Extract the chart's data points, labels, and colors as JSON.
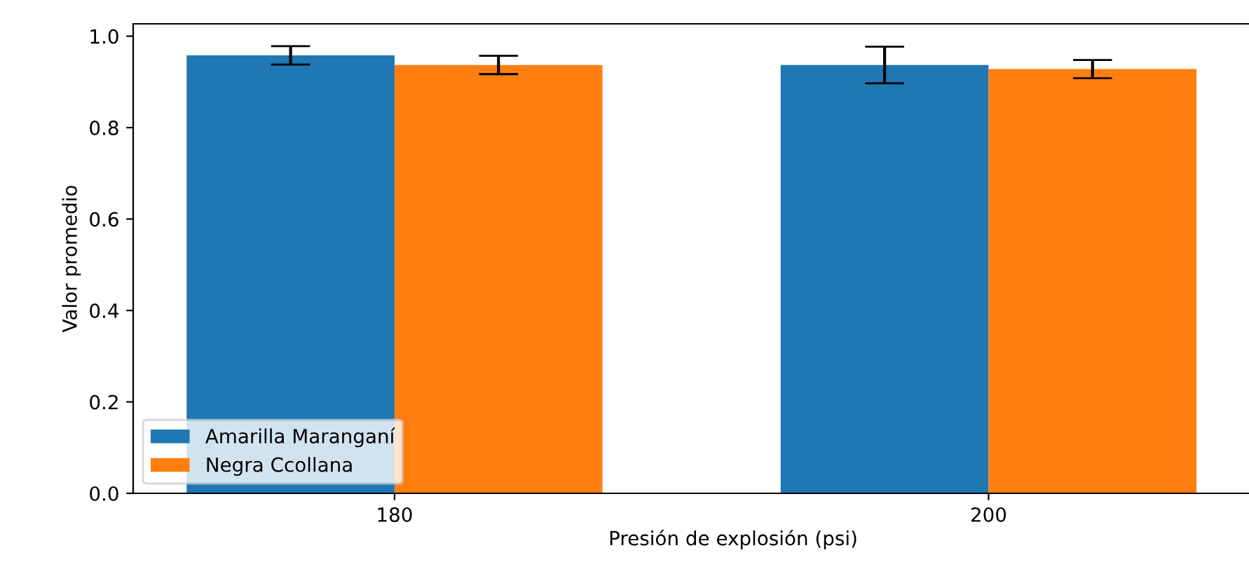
{
  "chart_data": {
    "type": "bar",
    "xlabel": "Presión de explosión (psi)",
    "ylabel": "Valor promedio",
    "categories": [
      "180",
      "200"
    ],
    "series": [
      {
        "name": "Amarilla Maranganí",
        "color": "#1f77b4",
        "values": [
          0.958,
          0.937
        ],
        "errors": [
          0.02,
          0.04
        ]
      },
      {
        "name": "Negra Ccollana",
        "color": "#ff7f0e",
        "values": [
          0.937,
          0.928
        ],
        "errors": [
          0.02,
          0.02
        ]
      }
    ],
    "ylim": [
      0,
      1.027
    ],
    "yticks": [
      {
        "value": 0,
        "label": "0.0"
      },
      0.2,
      0.4,
      0.6,
      0.8,
      {
        "value": 1,
        "label": "1.0"
      }
    ],
    "grid": false,
    "legend": "bottom left"
  }
}
